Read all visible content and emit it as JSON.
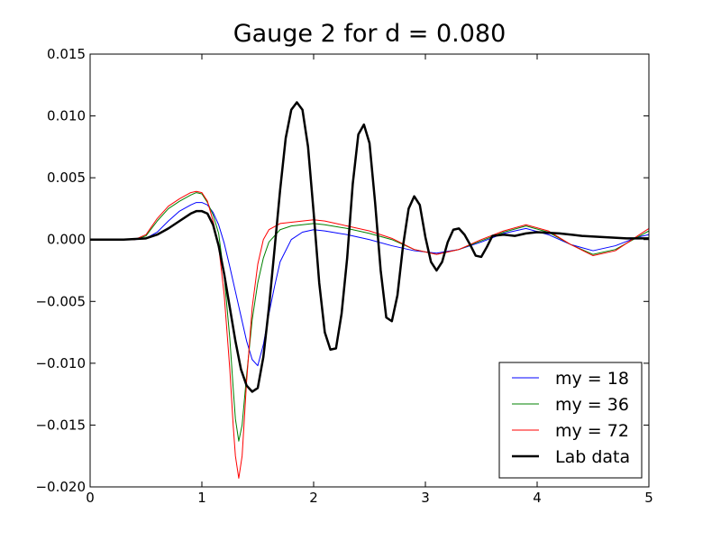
{
  "chart_data": {
    "type": "line",
    "title": "Gauge 2 for d = 0.080",
    "xlabel": "",
    "ylabel": "",
    "xlim": [
      0,
      5
    ],
    "ylim": [
      -0.02,
      0.015
    ],
    "xticks": [
      0,
      1,
      2,
      3,
      4,
      5
    ],
    "xtick_labels": [
      "0",
      "1",
      "2",
      "3",
      "4",
      "5"
    ],
    "yticks": [
      -0.02,
      -0.015,
      -0.01,
      -0.005,
      0.0,
      0.005,
      0.01,
      0.015
    ],
    "ytick_labels": [
      "−0.020",
      "−0.015",
      "−0.010",
      "−0.005",
      "0.000",
      "0.005",
      "0.010",
      "0.015"
    ],
    "grid": false,
    "legend_position": "lower-right",
    "series": [
      {
        "name": "my = 18",
        "color": "#0000ff",
        "x": [
          0,
          0.4,
          0.5,
          0.6,
          0.7,
          0.8,
          0.9,
          0.95,
          1.0,
          1.05,
          1.1,
          1.15,
          1.2,
          1.25,
          1.3,
          1.35,
          1.4,
          1.45,
          1.5,
          1.55,
          1.6,
          1.65,
          1.7,
          1.8,
          1.9,
          2.0,
          2.1,
          2.3,
          2.5,
          2.7,
          2.9,
          3.1,
          3.3,
          3.5,
          3.7,
          3.9,
          4.1,
          4.3,
          4.5,
          4.7,
          4.9,
          5.0
        ],
        "y": [
          0,
          0,
          0.0001,
          0.0006,
          0.0015,
          0.0023,
          0.0028,
          0.003,
          0.003,
          0.0028,
          0.0022,
          0.0012,
          -0.0003,
          -0.0022,
          -0.0042,
          -0.0062,
          -0.0082,
          -0.0097,
          -0.0102,
          -0.0085,
          -0.006,
          -0.0038,
          -0.0018,
          0.0,
          0.0006,
          0.0008,
          0.0007,
          0.0004,
          0.0,
          -0.0005,
          -0.0009,
          -0.0011,
          -0.0008,
          -0.0002,
          0.0005,
          0.0009,
          0.0004,
          -0.0004,
          -0.0009,
          -0.0005,
          0.0002,
          0.0004
        ]
      },
      {
        "name": "my = 36",
        "color": "#008000",
        "x": [
          0,
          0.4,
          0.5,
          0.6,
          0.7,
          0.8,
          0.9,
          0.95,
          1.0,
          1.05,
          1.1,
          1.15,
          1.2,
          1.25,
          1.28,
          1.3,
          1.33,
          1.36,
          1.4,
          1.45,
          1.5,
          1.55,
          1.6,
          1.7,
          1.8,
          1.9,
          2.0,
          2.1,
          2.3,
          2.5,
          2.7,
          2.9,
          3.1,
          3.3,
          3.5,
          3.7,
          3.9,
          4.1,
          4.3,
          4.5,
          4.7,
          4.9,
          5.0
        ],
        "y": [
          0,
          0,
          0.0003,
          0.0015,
          0.0025,
          0.0031,
          0.0036,
          0.0038,
          0.0037,
          0.003,
          0.002,
          0.0005,
          -0.003,
          -0.008,
          -0.012,
          -0.0145,
          -0.0163,
          -0.015,
          -0.011,
          -0.0065,
          -0.0035,
          -0.0015,
          -0.0002,
          0.0008,
          0.0011,
          0.0012,
          0.0013,
          0.0012,
          0.0009,
          0.0005,
          0.0,
          -0.0008,
          -0.0012,
          -0.0008,
          -0.0001,
          0.0006,
          0.0011,
          0.0006,
          -0.0004,
          -0.0012,
          -0.0008,
          0.0002,
          0.0007
        ]
      },
      {
        "name": "my = 72",
        "color": "#ff0000",
        "x": [
          0,
          0.4,
          0.5,
          0.6,
          0.7,
          0.8,
          0.9,
          0.95,
          1.0,
          1.05,
          1.1,
          1.15,
          1.2,
          1.25,
          1.28,
          1.3,
          1.33,
          1.36,
          1.4,
          1.45,
          1.5,
          1.55,
          1.6,
          1.7,
          1.8,
          1.9,
          2.0,
          2.1,
          2.3,
          2.5,
          2.7,
          2.9,
          3.1,
          3.3,
          3.5,
          3.7,
          3.9,
          4.1,
          4.3,
          4.5,
          4.7,
          4.9,
          5.0
        ],
        "y": [
          0,
          0,
          0.0004,
          0.0017,
          0.0027,
          0.0033,
          0.0038,
          0.0039,
          0.0038,
          0.0031,
          0.0015,
          -0.0005,
          -0.0045,
          -0.0105,
          -0.015,
          -0.0175,
          -0.0193,
          -0.0175,
          -0.0115,
          -0.0055,
          -0.002,
          0.0,
          0.0008,
          0.0013,
          0.0014,
          0.0015,
          0.0016,
          0.0015,
          0.0011,
          0.0007,
          0.0001,
          -0.0008,
          -0.0012,
          -0.0008,
          0.0,
          0.0007,
          0.0012,
          0.0007,
          -0.0004,
          -0.0013,
          -0.0009,
          0.0003,
          0.0009
        ]
      },
      {
        "name": "Lab data",
        "color": "#000000",
        "x": [
          0,
          0.3,
          0.5,
          0.6,
          0.7,
          0.8,
          0.9,
          0.95,
          1.0,
          1.05,
          1.1,
          1.15,
          1.2,
          1.25,
          1.3,
          1.35,
          1.4,
          1.45,
          1.5,
          1.55,
          1.6,
          1.65,
          1.7,
          1.75,
          1.8,
          1.85,
          1.9,
          1.95,
          2.0,
          2.05,
          2.1,
          2.15,
          2.2,
          2.25,
          2.3,
          2.35,
          2.4,
          2.45,
          2.5,
          2.55,
          2.6,
          2.65,
          2.7,
          2.75,
          2.8,
          2.85,
          2.9,
          2.95,
          3.0,
          3.05,
          3.1,
          3.15,
          3.2,
          3.25,
          3.3,
          3.35,
          3.4,
          3.45,
          3.5,
          3.55,
          3.6,
          3.7,
          3.8,
          3.9,
          4.0,
          4.2,
          4.4,
          4.6,
          4.8,
          5.0
        ],
        "y": [
          0,
          0,
          0.0001,
          0.0004,
          0.0009,
          0.0015,
          0.0021,
          0.0023,
          0.0023,
          0.0021,
          0.0012,
          -0.0005,
          -0.0028,
          -0.0055,
          -0.0082,
          -0.0105,
          -0.0118,
          -0.0123,
          -0.012,
          -0.0095,
          -0.0055,
          -0.0008,
          0.004,
          0.0082,
          0.0105,
          0.0111,
          0.0105,
          0.0075,
          0.0022,
          -0.0035,
          -0.0075,
          -0.0089,
          -0.0088,
          -0.006,
          -0.0015,
          0.0045,
          0.0085,
          0.0093,
          0.0078,
          0.003,
          -0.0025,
          -0.0063,
          -0.0066,
          -0.0045,
          -0.0005,
          0.0025,
          0.0035,
          0.0028,
          0.0002,
          -0.0018,
          -0.0025,
          -0.0018,
          -0.0002,
          0.0008,
          0.0009,
          0.0004,
          -0.0004,
          -0.0013,
          -0.0014,
          -0.0006,
          0.0003,
          0.0004,
          0.0003,
          0.0005,
          0.0006,
          0.0005,
          0.0003,
          0.0002,
          0.0001,
          0.0001
        ]
      }
    ]
  }
}
